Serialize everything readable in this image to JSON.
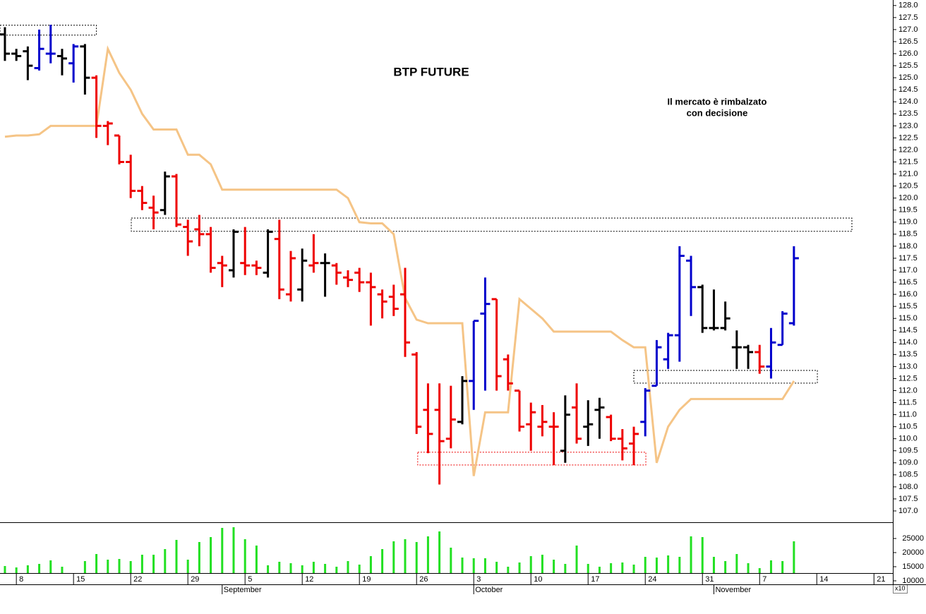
{
  "chart_data": [
    {
      "type": "ohlc",
      "title": "BTP FUTURE",
      "annotations": [
        "Il mercato è rimbalzato",
        "con decisione"
      ],
      "annotation_color": "#0000cc",
      "xlim": [
        -0.43,
        77.65
      ],
      "ylim": [
        106.53,
        128.23
      ],
      "yticks": [
        {
          "value": 107,
          "label": "107.0"
        },
        107.5,
        {
          "value": 108,
          "label": "108.0"
        },
        108.5,
        {
          "value": 109,
          "label": "109.0"
        },
        109.5,
        {
          "value": 110,
          "label": "110.0"
        },
        110.5,
        {
          "value": 111,
          "label": "111.0"
        },
        111.5,
        {
          "value": 112,
          "label": "112.0"
        },
        112.5,
        {
          "value": 113,
          "label": "113.0"
        },
        113.5,
        {
          "value": 114,
          "label": "114.0"
        },
        114.5,
        {
          "value": 115,
          "label": "115.0"
        },
        115.5,
        {
          "value": 116,
          "label": "116.0"
        },
        116.5,
        {
          "value": 117,
          "label": "117.0"
        },
        117.5,
        {
          "value": 118,
          "label": "118.0"
        },
        118.5,
        {
          "value": 119,
          "label": "119.0"
        },
        119.5,
        {
          "value": 120,
          "label": "120.0"
        },
        120.5,
        {
          "value": 121,
          "label": "121.0"
        },
        121.5,
        {
          "value": 122,
          "label": "122.0"
        },
        122.5,
        {
          "value": 123,
          "label": "123.0"
        },
        123.5,
        {
          "value": 124,
          "label": "124.0"
        },
        124.5,
        {
          "value": 125,
          "label": "125.0"
        },
        125.5,
        {
          "value": 126,
          "label": "126.0"
        },
        126.5,
        {
          "value": 127,
          "label": "127.0"
        },
        127.5,
        {
          "value": 128,
          "label": "128.0"
        }
      ],
      "open": [
        126.8,
        126.0,
        126.1,
        125.4,
        126.0,
        125.9,
        125.6,
        126.3,
        125.0,
        123.0,
        122.6,
        121.5,
        120.3,
        119.6,
        119.5,
        120.9,
        118.8,
        118.7,
        118.5,
        117.3,
        117.0,
        117.3,
        117.2,
        116.9,
        118.3,
        116.0,
        116.2,
        117.2,
        117.3,
        117.2,
        116.7,
        116.9,
        116.5,
        116.0,
        115.9,
        116.0,
        113.5,
        111.2,
        111.2,
        110.0,
        110.7,
        112.4,
        115.2,
        115.8,
        113.3,
        112.0,
        110.6,
        110.5,
        110.5,
        109.5,
        111.3,
        110.5,
        111.2,
        110.9,
        110.0,
        109.8,
        110.7,
        112.2,
        113.3,
        114.3,
        117.4,
        116.3,
        114.6,
        114.6,
        113.8,
        113.8,
        113.6,
        113.0,
        113.9,
        114.8
      ],
      "high": [
        127.1,
        126.2,
        126.3,
        127.0,
        127.2,
        126.2,
        126.4,
        126.4,
        125.1,
        123.2,
        122.6,
        121.8,
        120.5,
        120.1,
        121.1,
        121.0,
        119.1,
        119.3,
        118.8,
        117.6,
        118.7,
        118.8,
        117.4,
        118.7,
        119.1,
        117.8,
        117.9,
        118.5,
        117.7,
        117.3,
        117.0,
        117.1,
        116.9,
        116.2,
        116.4,
        117.1,
        113.6,
        112.3,
        112.3,
        112.2,
        112.6,
        114.9,
        116.7,
        115.8,
        113.5,
        112.0,
        111.5,
        111.4,
        111.1,
        111.8,
        112.3,
        111.6,
        111.7,
        111.0,
        110.4,
        110.5,
        112.1,
        114.1,
        114.4,
        118.0,
        117.6,
        116.4,
        116.2,
        115.7,
        114.5,
        113.9,
        113.9,
        114.6,
        115.3,
        118.0
      ],
      "low": [
        125.7,
        125.7,
        124.9,
        125.3,
        125.6,
        125.1,
        124.8,
        124.3,
        122.5,
        122.2,
        121.4,
        120.0,
        119.5,
        118.7,
        119.3,
        118.8,
        117.6,
        118.0,
        116.9,
        116.3,
        116.7,
        116.8,
        116.8,
        116.7,
        115.8,
        115.7,
        115.7,
        116.9,
        115.9,
        116.4,
        116.3,
        116.1,
        114.7,
        115.0,
        115.1,
        113.4,
        110.2,
        109.4,
        108.1,
        109.6,
        110.6,
        111.2,
        112.0,
        112.0,
        112.0,
        110.3,
        109.5,
        110.1,
        108.9,
        109.0,
        109.8,
        109.7,
        110.0,
        109.9,
        109.1,
        108.9,
        110.1,
        112.2,
        112.9,
        113.2,
        115.1,
        114.4,
        114.5,
        114.5,
        112.9,
        112.9,
        112.7,
        112.5,
        113.9,
        114.7
      ],
      "close": [
        126.0,
        125.9,
        125.5,
        126.2,
        126.0,
        125.8,
        126.3,
        125.0,
        123.0,
        123.1,
        121.5,
        120.3,
        119.8,
        119.4,
        120.9,
        118.9,
        118.2,
        118.5,
        117.1,
        117.2,
        118.6,
        117.2,
        117.1,
        118.6,
        116.2,
        117.5,
        117.4,
        117.3,
        117.3,
        116.9,
        116.6,
        116.5,
        116.3,
        115.7,
        115.4,
        114.0,
        110.5,
        110.2,
        109.9,
        110.8,
        112.4,
        114.9,
        115.6,
        112.6,
        112.3,
        110.5,
        111.1,
        110.7,
        110.5,
        111.0,
        110.0,
        110.6,
        111.3,
        110.0,
        109.6,
        110.2,
        112.0,
        113.8,
        114.3,
        117.6,
        116.3,
        114.6,
        114.6,
        115.0,
        113.8,
        113.6,
        113.0,
        114.0,
        115.2,
        117.5
      ],
      "colors": [
        "#000000",
        "#000000",
        "#000000",
        "#0000cc",
        "#0000cc",
        "#000000",
        "#0000cc",
        "#000000",
        "#ee0000",
        "#ee0000",
        "#ee0000",
        "#ee0000",
        "#ee0000",
        "#ee0000",
        "#000000",
        "#ee0000",
        "#ee0000",
        "#ee0000",
        "#ee0000",
        "#ee0000",
        "#000000",
        "#ee0000",
        "#ee0000",
        "#000000",
        "#ee0000",
        "#ee0000",
        "#000000",
        "#ee0000",
        "#000000",
        "#ee0000",
        "#ee0000",
        "#ee0000",
        "#ee0000",
        "#ee0000",
        "#ee0000",
        "#ee0000",
        "#ee0000",
        "#ee0000",
        "#ee0000",
        "#ee0000",
        "#000000",
        "#0000cc",
        "#0000cc",
        "#ee0000",
        "#ee0000",
        "#ee0000",
        "#ee0000",
        "#ee0000",
        "#ee0000",
        "#000000",
        "#ee0000",
        "#000000",
        "#000000",
        "#ee0000",
        "#ee0000",
        "#ee0000",
        "#0000cc",
        "#0000cc",
        "#0000cc",
        "#0000cc",
        "#0000cc",
        "#000000",
        "#000000",
        "#000000",
        "#000000",
        "#000000",
        "#ee0000",
        "#0000cc",
        "#0000cc",
        "#0000cc"
      ],
      "line": {
        "color": "#f5c486",
        "values": [
          122.55,
          122.6,
          122.6,
          122.65,
          123.0,
          123.0,
          123.0,
          123.0,
          123.0,
          126.2,
          125.2,
          124.5,
          123.5,
          122.85,
          122.85,
          122.85,
          121.8,
          121.8,
          121.4,
          120.35,
          120.35,
          120.35,
          120.35,
          120.35,
          120.35,
          120.35,
          120.35,
          120.35,
          120.35,
          120.35,
          120.0,
          119.0,
          118.95,
          118.95,
          118.5,
          115.85,
          114.95,
          114.8,
          114.8,
          114.8,
          114.8,
          108.45,
          111.1,
          111.1,
          111.1,
          115.8,
          115.4,
          115.0,
          114.45,
          114.45,
          114.45,
          114.45,
          114.45,
          114.45,
          114.1,
          113.8,
          113.8,
          109.0,
          110.5,
          111.2,
          111.65,
          111.65,
          111.65,
          111.65,
          111.65,
          111.65,
          111.65,
          111.65,
          111.65,
          112.4
        ]
      },
      "zones": [
        {
          "x": [
            -0.43,
            8.0
          ],
          "y": [
            126.77,
            127.18
          ],
          "color": "#000000"
        },
        {
          "x": [
            11.05,
            74.07
          ],
          "y": [
            118.62,
            119.17
          ],
          "color": "#000000"
        },
        {
          "x": [
            36.1,
            56.05
          ],
          "y": [
            108.91,
            109.44
          ],
          "color": "#ee0000"
        },
        {
          "x": [
            55.0,
            71.05
          ],
          "y": [
            112.31,
            112.84
          ],
          "color": "#000000"
        }
      ]
    },
    {
      "type": "bar",
      "color": "#22e022",
      "scale_note": "x10",
      "xlim": [
        -0.43,
        77.65
      ],
      "ylim": [
        12750,
        30250
      ],
      "yticks": [
        10000,
        15000,
        20000,
        25000
      ],
      "values": [
        15250,
        14750,
        15500,
        16000,
        17250,
        15000,
        null,
        17000,
        19500,
        17500,
        17750,
        17000,
        19250,
        19250,
        21250,
        24500,
        17500,
        23750,
        25500,
        28750,
        29000,
        24750,
        22500,
        15500,
        16750,
        16250,
        15500,
        16750,
        16000,
        15000,
        17000,
        15750,
        18750,
        21250,
        24000,
        24750,
        23750,
        25750,
        27500,
        21750,
        18250,
        18000,
        18000,
        16750,
        15000,
        16500,
        18750,
        19250,
        17500,
        16000,
        22500,
        16000,
        15000,
        16250,
        16500,
        15750,
        18500,
        18250,
        19000,
        18500,
        25750,
        25500,
        18500,
        17000,
        19500,
        16250,
        14500,
        17250,
        17000,
        24000
      ],
      "xticks": [
        {
          "value": 1,
          "label": "8"
        },
        {
          "value": 6,
          "label": "15"
        },
        {
          "value": 11,
          "label": "22"
        },
        {
          "value": 16,
          "label": "29"
        },
        {
          "value": 21,
          "label": "5"
        },
        {
          "value": 26,
          "label": "12"
        },
        {
          "value": 31,
          "label": "19"
        },
        {
          "value": 36,
          "label": "26"
        },
        {
          "value": 41,
          "label": "3"
        },
        {
          "value": 46,
          "label": "10"
        },
        {
          "value": 51,
          "label": "17"
        },
        {
          "value": 56,
          "label": "24"
        },
        {
          "value": 61,
          "label": "31"
        },
        {
          "value": 66,
          "label": "7"
        },
        {
          "value": 71,
          "label": "14"
        },
        {
          "value": 76,
          "label": "21"
        }
      ],
      "month_ticks": [
        {
          "value": 19,
          "label": "September"
        },
        {
          "value": 41,
          "label": "October"
        },
        {
          "value": 62,
          "label": "November"
        }
      ]
    }
  ]
}
